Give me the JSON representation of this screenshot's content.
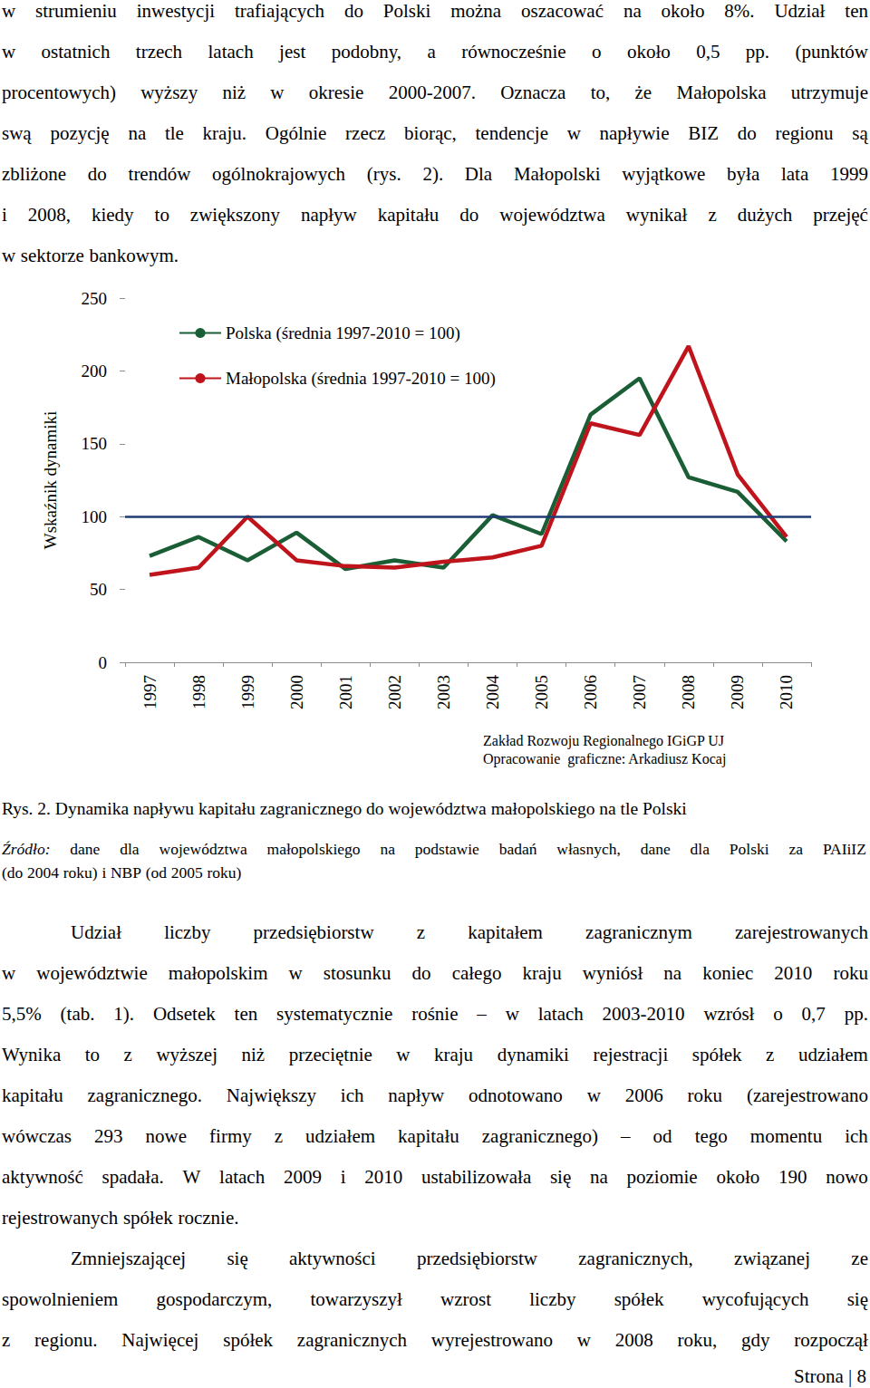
{
  "paragraphs_top": [
    {
      "indent": false,
      "last_line_justified": false,
      "lines": [
        "w strumieniu inwestycji trafiających do Polski można oszacować na około 8%. Udział ten",
        "w ostatnich trzech latach jest podobny, a równocześnie o około 0,5 pp. (punktów",
        "procentowych) wyższy niż w okresie 2000-2007. Oznacza to, że Małopolska utrzymuje",
        "swą pozycję na tle kraju. Ogólnie rzecz biorąc, tendencje w napływie BIZ do regionu są",
        "zbliżone do trendów ogólnokrajowych (rys. 2). Dla Małopolski wyjątkowe była lata 1999",
        "i 2008, kiedy to zwiększony napływ kapitału do województwa wynikał z dużych przejęć",
        "w sektorze bankowym."
      ]
    }
  ],
  "chart_data": {
    "type": "line",
    "y_label": "Wskaźnik dynamiki",
    "categories": [
      "1997",
      "1998",
      "1999",
      "2000",
      "2001",
      "2002",
      "2003",
      "2004",
      "2005",
      "2006",
      "2007",
      "2008",
      "2009",
      "2010"
    ],
    "series": [
      {
        "name": "Polska (średnia 1997-2010 = 100)",
        "color": "#1a5e36",
        "values": [
          73,
          86,
          70,
          89,
          64,
          70,
          65,
          101,
          88,
          170,
          195,
          127,
          117,
          83
        ]
      },
      {
        "name": "Małopolska (średnia 1997-2010 = 100)",
        "color": "#c0141c",
        "values": [
          60,
          65,
          100,
          70,
          66,
          65,
          69,
          72,
          80,
          164,
          156,
          217,
          129,
          86
        ]
      }
    ],
    "reference_lines": [
      {
        "value": 100,
        "color": "#1f3b73"
      }
    ],
    "ylim": [
      0,
      250
    ],
    "yticks": [
      0,
      50,
      100,
      150,
      200,
      250
    ],
    "grid": false,
    "legend": "upper left"
  },
  "chart_credits": [
    "Zakład Rozwoju Regionalnego IGiGP UJ",
    "Opracowanie  graficzne: Arkadiusz Kocaj"
  ],
  "caption": "Rys. 2. Dynamika napływu kapitału zagranicznego do województwa małopolskiego na tle Polski",
  "source": {
    "label": "Źródło:",
    "lines": [
      "dane dla województwa małopolskiego na podstawie badań własnych, dane dla Polski za PAIiIZ",
      "(do 2004 roku) i NBP (od 2005 roku)"
    ]
  },
  "paragraphs_bottom": [
    {
      "indent": true,
      "last_line_justified": false,
      "lines": [
        "Udział liczby przedsiębiorstw z kapitałem zagranicznym zarejestrowanych",
        "w województwie małopolskim w stosunku do całego kraju wyniósł na koniec 2010 roku",
        "5,5% (tab. 1). Odsetek ten systematycznie rośnie – w latach 2003-2010 wzrósł o 0,7 pp.",
        "Wynika to z wyższej niż przeciętnie w kraju dynamiki rejestracji spółek z udziałem",
        "kapitału zagranicznego. Największy ich napływ odnotowano w 2006 roku (zarejestrowano",
        "wówczas 293 nowe firmy z udziałem kapitału zagranicznego) – od tego momentu ich",
        "aktywność spadała. W latach 2009 i 2010 ustabilizowała się na poziomie około 190 nowo",
        "rejestrowanych spółek rocznie."
      ]
    },
    {
      "indent": true,
      "last_line_justified": true,
      "lines": [
        "Zmniejszającej się aktywności przedsiębiorstw zagranicznych, związanej ze",
        "spowolnieniem gospodarczym, towarzyszył wzrost liczby spółek wycofujących się",
        "z regionu. Najwięcej spółek zagranicznych wyrejestrowano w 2008 roku, gdy rozpoczął"
      ]
    }
  ],
  "footer": "Strona | 8"
}
